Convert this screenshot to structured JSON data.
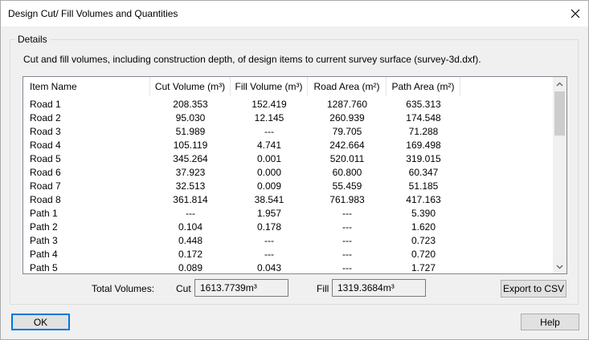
{
  "window": {
    "title": "Design Cut/ Fill Volumes and Quantities"
  },
  "details": {
    "group_label": "Details",
    "description": "Cut and fill volumes, including construction depth, of design items to current survey surface (survey-3d.dxf)."
  },
  "table": {
    "columns": [
      "Item Name",
      "Cut Volume (m³)",
      "Fill Volume (m³)",
      "Road Area (m²)",
      "Path Area (m²)"
    ],
    "rows": [
      [
        "Road 1",
        "208.353",
        "152.419",
        "1287.760",
        "635.313"
      ],
      [
        "Road 2",
        "95.030",
        "12.145",
        "260.939",
        "174.548"
      ],
      [
        "Road 3",
        "51.989",
        "---",
        "79.705",
        "71.288"
      ],
      [
        "Road 4",
        "105.119",
        "4.741",
        "242.664",
        "169.498"
      ],
      [
        "Road 5",
        "345.264",
        "0.001",
        "520.011",
        "319.015"
      ],
      [
        "Road 6",
        "37.923",
        "0.000",
        "60.800",
        "60.347"
      ],
      [
        "Road 7",
        "32.513",
        "0.009",
        "55.459",
        "51.185"
      ],
      [
        "Road 8",
        "361.814",
        "38.541",
        "761.983",
        "417.163"
      ],
      [
        "Path 1",
        "---",
        "1.957",
        "---",
        "5.390"
      ],
      [
        "Path 2",
        "0.104",
        "0.178",
        "---",
        "1.620"
      ],
      [
        "Path 3",
        "0.448",
        "---",
        "---",
        "0.723"
      ],
      [
        "Path 4",
        "0.172",
        "---",
        "---",
        "0.720"
      ],
      [
        "Path 5",
        "0.089",
        "0.043",
        "---",
        "1.727"
      ]
    ]
  },
  "totals": {
    "label": "Total Volumes:",
    "cut_label": "Cut",
    "cut_value": "1613.7739m³",
    "fill_label": "Fill",
    "fill_value": "1319.3684m³"
  },
  "buttons": {
    "export": "Export to CSV",
    "ok": "OK",
    "help": "Help"
  },
  "icons": {
    "close": "close-icon",
    "scroll_up": "chevron-up-icon",
    "scroll_down": "chevron-down-icon"
  }
}
